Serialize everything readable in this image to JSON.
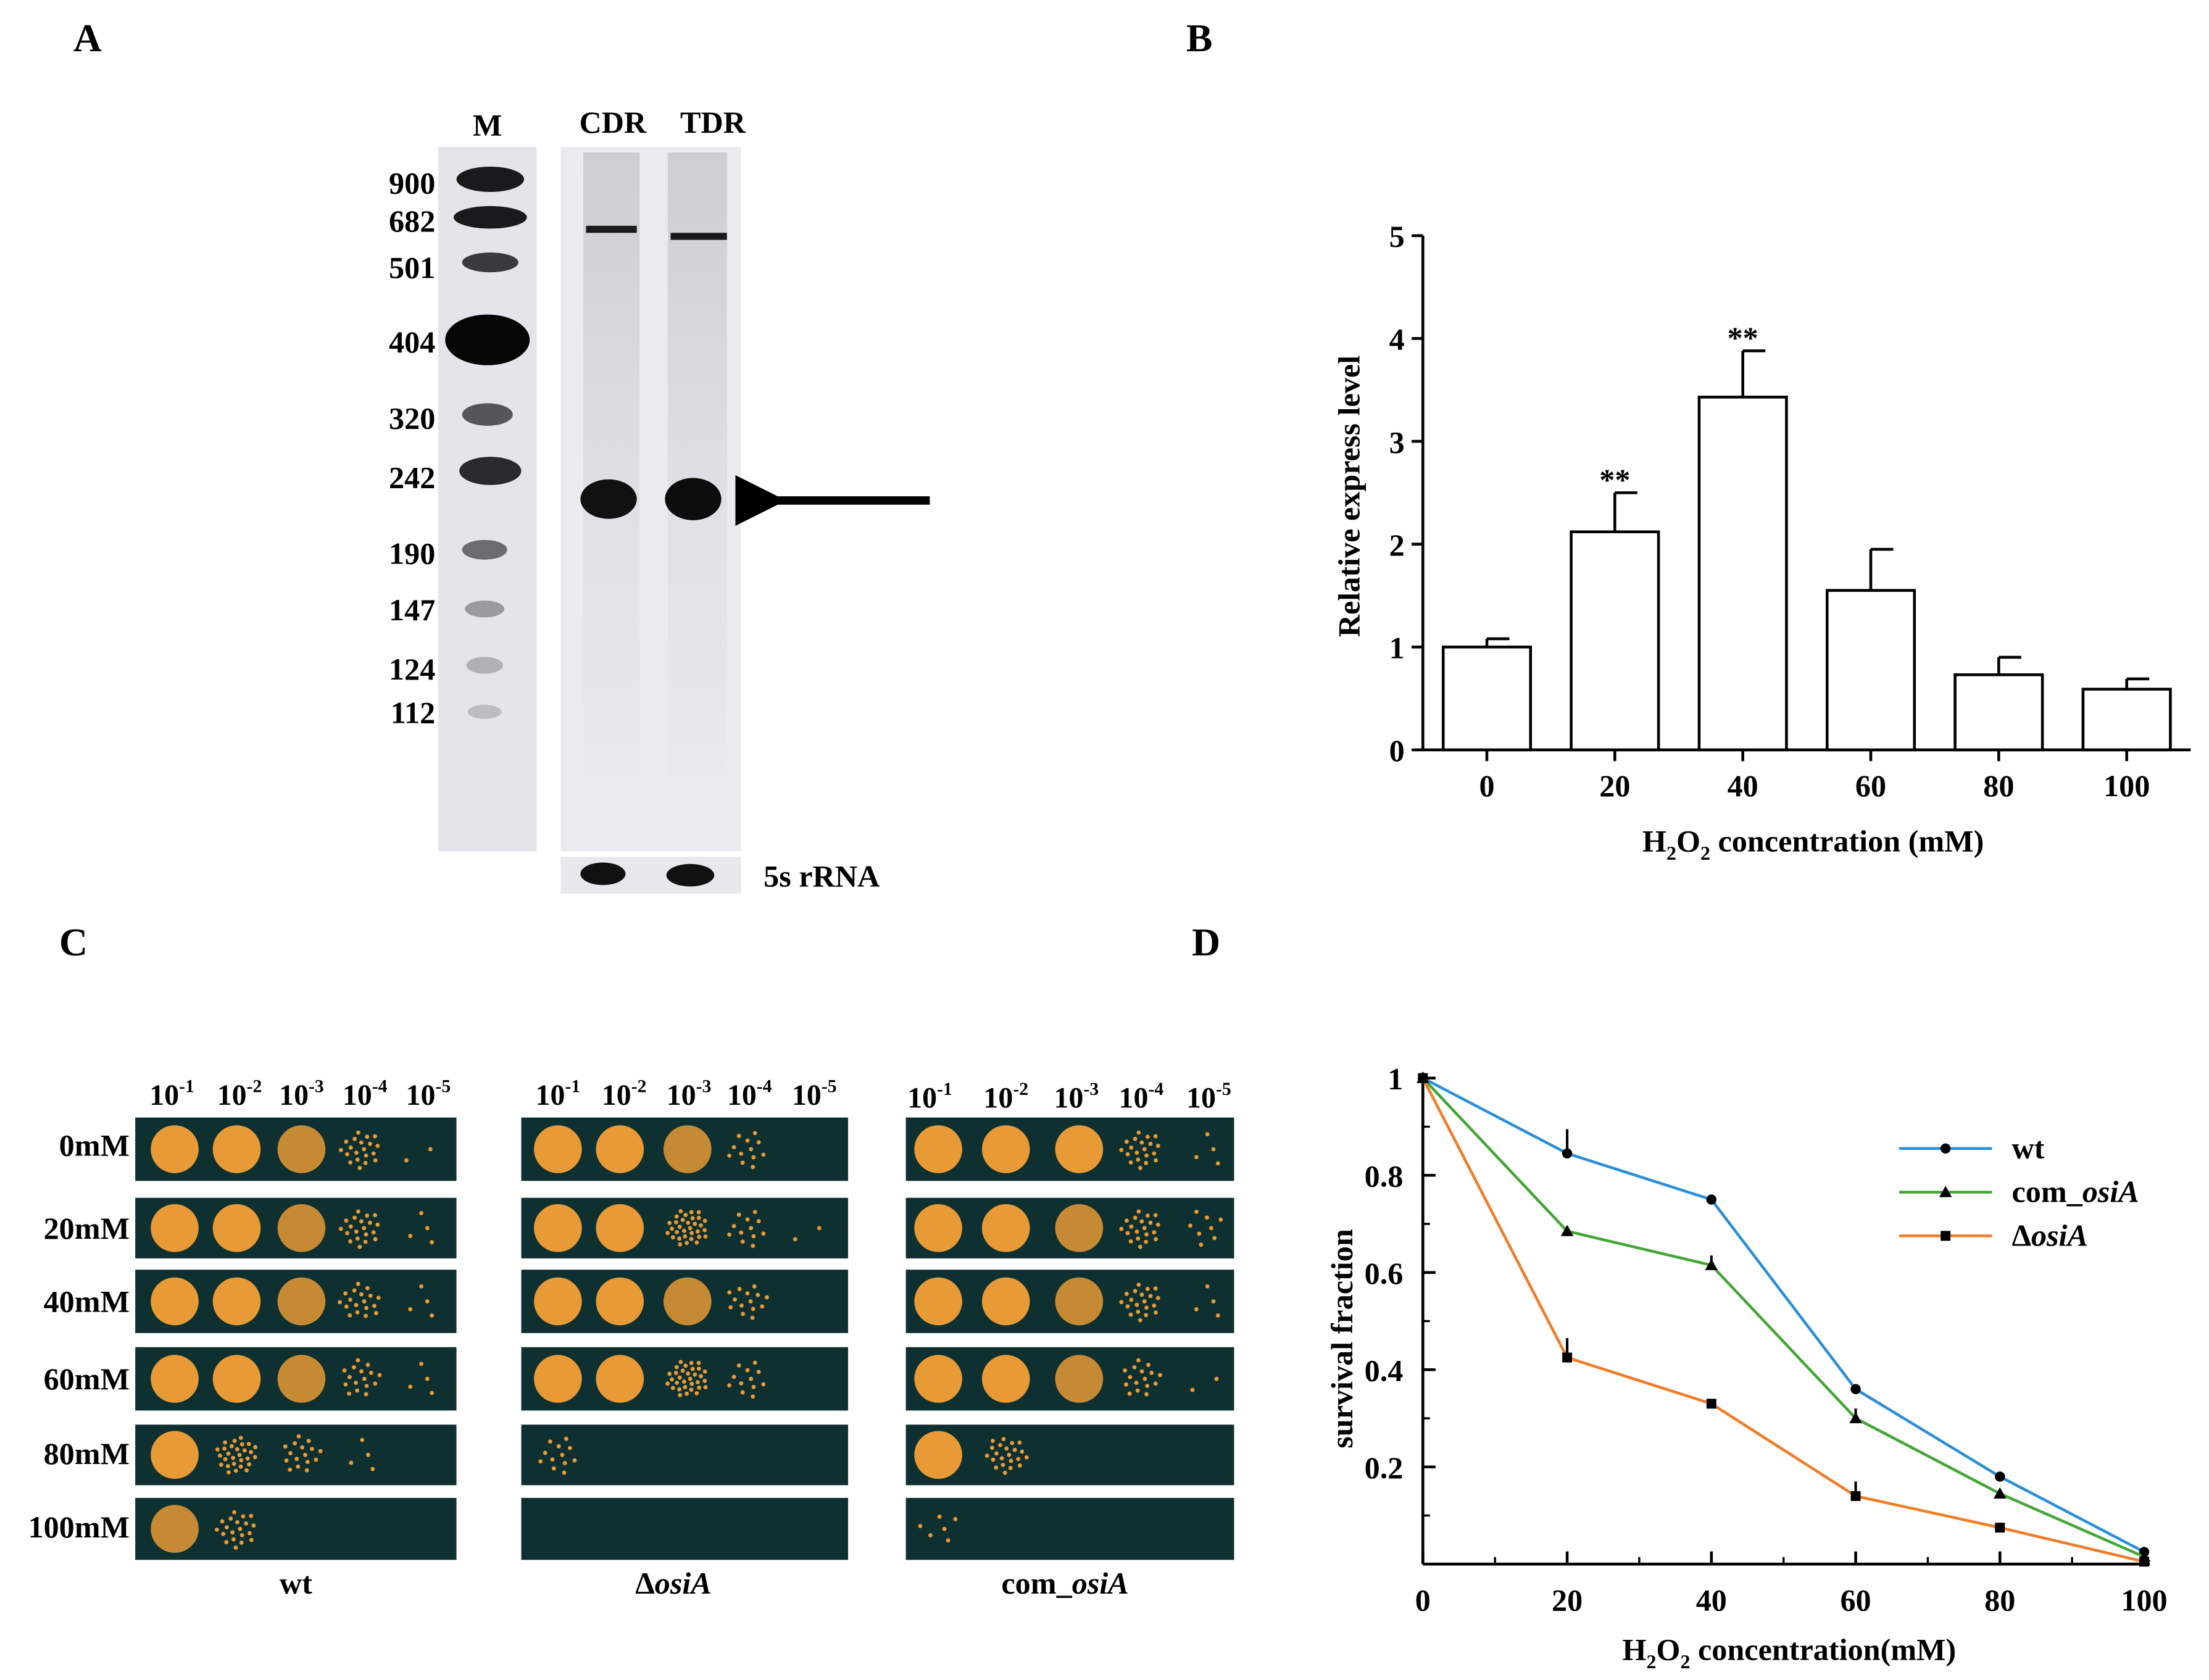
{
  "panels": {
    "A": {
      "letter": "A",
      "lane_labels": [
        "M",
        "CDR",
        "TDR"
      ],
      "marker_sizes": [
        "900",
        "682",
        "501",
        "404",
        "320",
        "242",
        "190",
        "147",
        "124",
        "112"
      ],
      "loading_control_label": "5s rRNA"
    },
    "B": {
      "letter": "B"
    },
    "C": {
      "letter": "C",
      "dilutions": [
        {
          "base": "10",
          "exp": "-1"
        },
        {
          "base": "10",
          "exp": "-2"
        },
        {
          "base": "10",
          "exp": "-3"
        },
        {
          "base": "10",
          "exp": "-4"
        },
        {
          "base": "10",
          "exp": "-5"
        }
      ],
      "concentrations": [
        "0mM",
        "20mM",
        "40mM",
        "60mM",
        "80mM",
        "100mM"
      ],
      "strains": [
        {
          "prefix": "",
          "italic": "",
          "plain": "wt"
        },
        {
          "prefix": "Δ",
          "italic": "osiA",
          "plain": ""
        },
        {
          "prefix": "com_",
          "italic": "osiA",
          "plain": ""
        }
      ],
      "plate_background": "#0e3030",
      "colony_color": "#e79a35"
    },
    "D": {
      "letter": "D"
    }
  },
  "chart_data": [
    {
      "panel": "B",
      "type": "bar",
      "categories": [
        "0",
        "20",
        "40",
        "60",
        "80",
        "100"
      ],
      "values": [
        1.0,
        2.12,
        3.43,
        1.55,
        0.73,
        0.59
      ],
      "errors": [
        0.08,
        0.38,
        0.45,
        0.4,
        0.17,
        0.1
      ],
      "significance": [
        "",
        "**",
        "**",
        "",
        "",
        ""
      ],
      "yticks": [
        "0",
        "1",
        "2",
        "3",
        "4",
        "5"
      ],
      "ylim": [
        0,
        5
      ],
      "xlabel_main": "H",
      "xlabel_sub1": "2",
      "xlabel_mid": "O",
      "xlabel_sub2": "2",
      "xlabel_rest": " concentration (mM)",
      "ylabel": "Relative express level",
      "bar_fill": "#ffffff",
      "bar_stroke": "#000000"
    },
    {
      "panel": "D",
      "type": "line",
      "x": [
        0,
        20,
        40,
        60,
        80,
        100
      ],
      "xticks": [
        "0",
        "20",
        "40",
        "60",
        "80",
        "100"
      ],
      "yticks": [
        "0.2",
        "0.4",
        "0.6",
        "0.8",
        "1"
      ],
      "xlim": [
        0,
        100
      ],
      "ylim": [
        0,
        1
      ],
      "series": [
        {
          "name": "wt",
          "name_italic": "",
          "name_prefix": "",
          "marker": "circle",
          "color": "#2b8fd8",
          "values": [
            1.0,
            0.845,
            0.75,
            0.36,
            0.18,
            0.025
          ],
          "errors": [
            0,
            0.05,
            0.01,
            0.01,
            0.01,
            0.005
          ]
        },
        {
          "name": "com_",
          "name_italic": "osiA",
          "name_prefix": "",
          "marker": "triangle",
          "color": "#44a636",
          "values": [
            1.0,
            0.685,
            0.615,
            0.3,
            0.145,
            0.015
          ],
          "errors": [
            0,
            0.01,
            0.02,
            0.02,
            0.005,
            0.005
          ]
        },
        {
          "name": "",
          "name_italic": "osiA",
          "name_prefix": "Δ",
          "marker": "square",
          "color": "#f07d28",
          "values": [
            1.0,
            0.425,
            0.33,
            0.14,
            0.075,
            0.005
          ],
          "errors": [
            0,
            0.04,
            0.01,
            0.03,
            0.01,
            0.005
          ]
        }
      ],
      "xlabel_main": "H",
      "xlabel_sub1": "2",
      "xlabel_mid": "O",
      "xlabel_sub2": "2",
      "xlabel_rest": " concentration(mM)",
      "ylabel": "survival fraction",
      "legend": "top-right"
    }
  ]
}
